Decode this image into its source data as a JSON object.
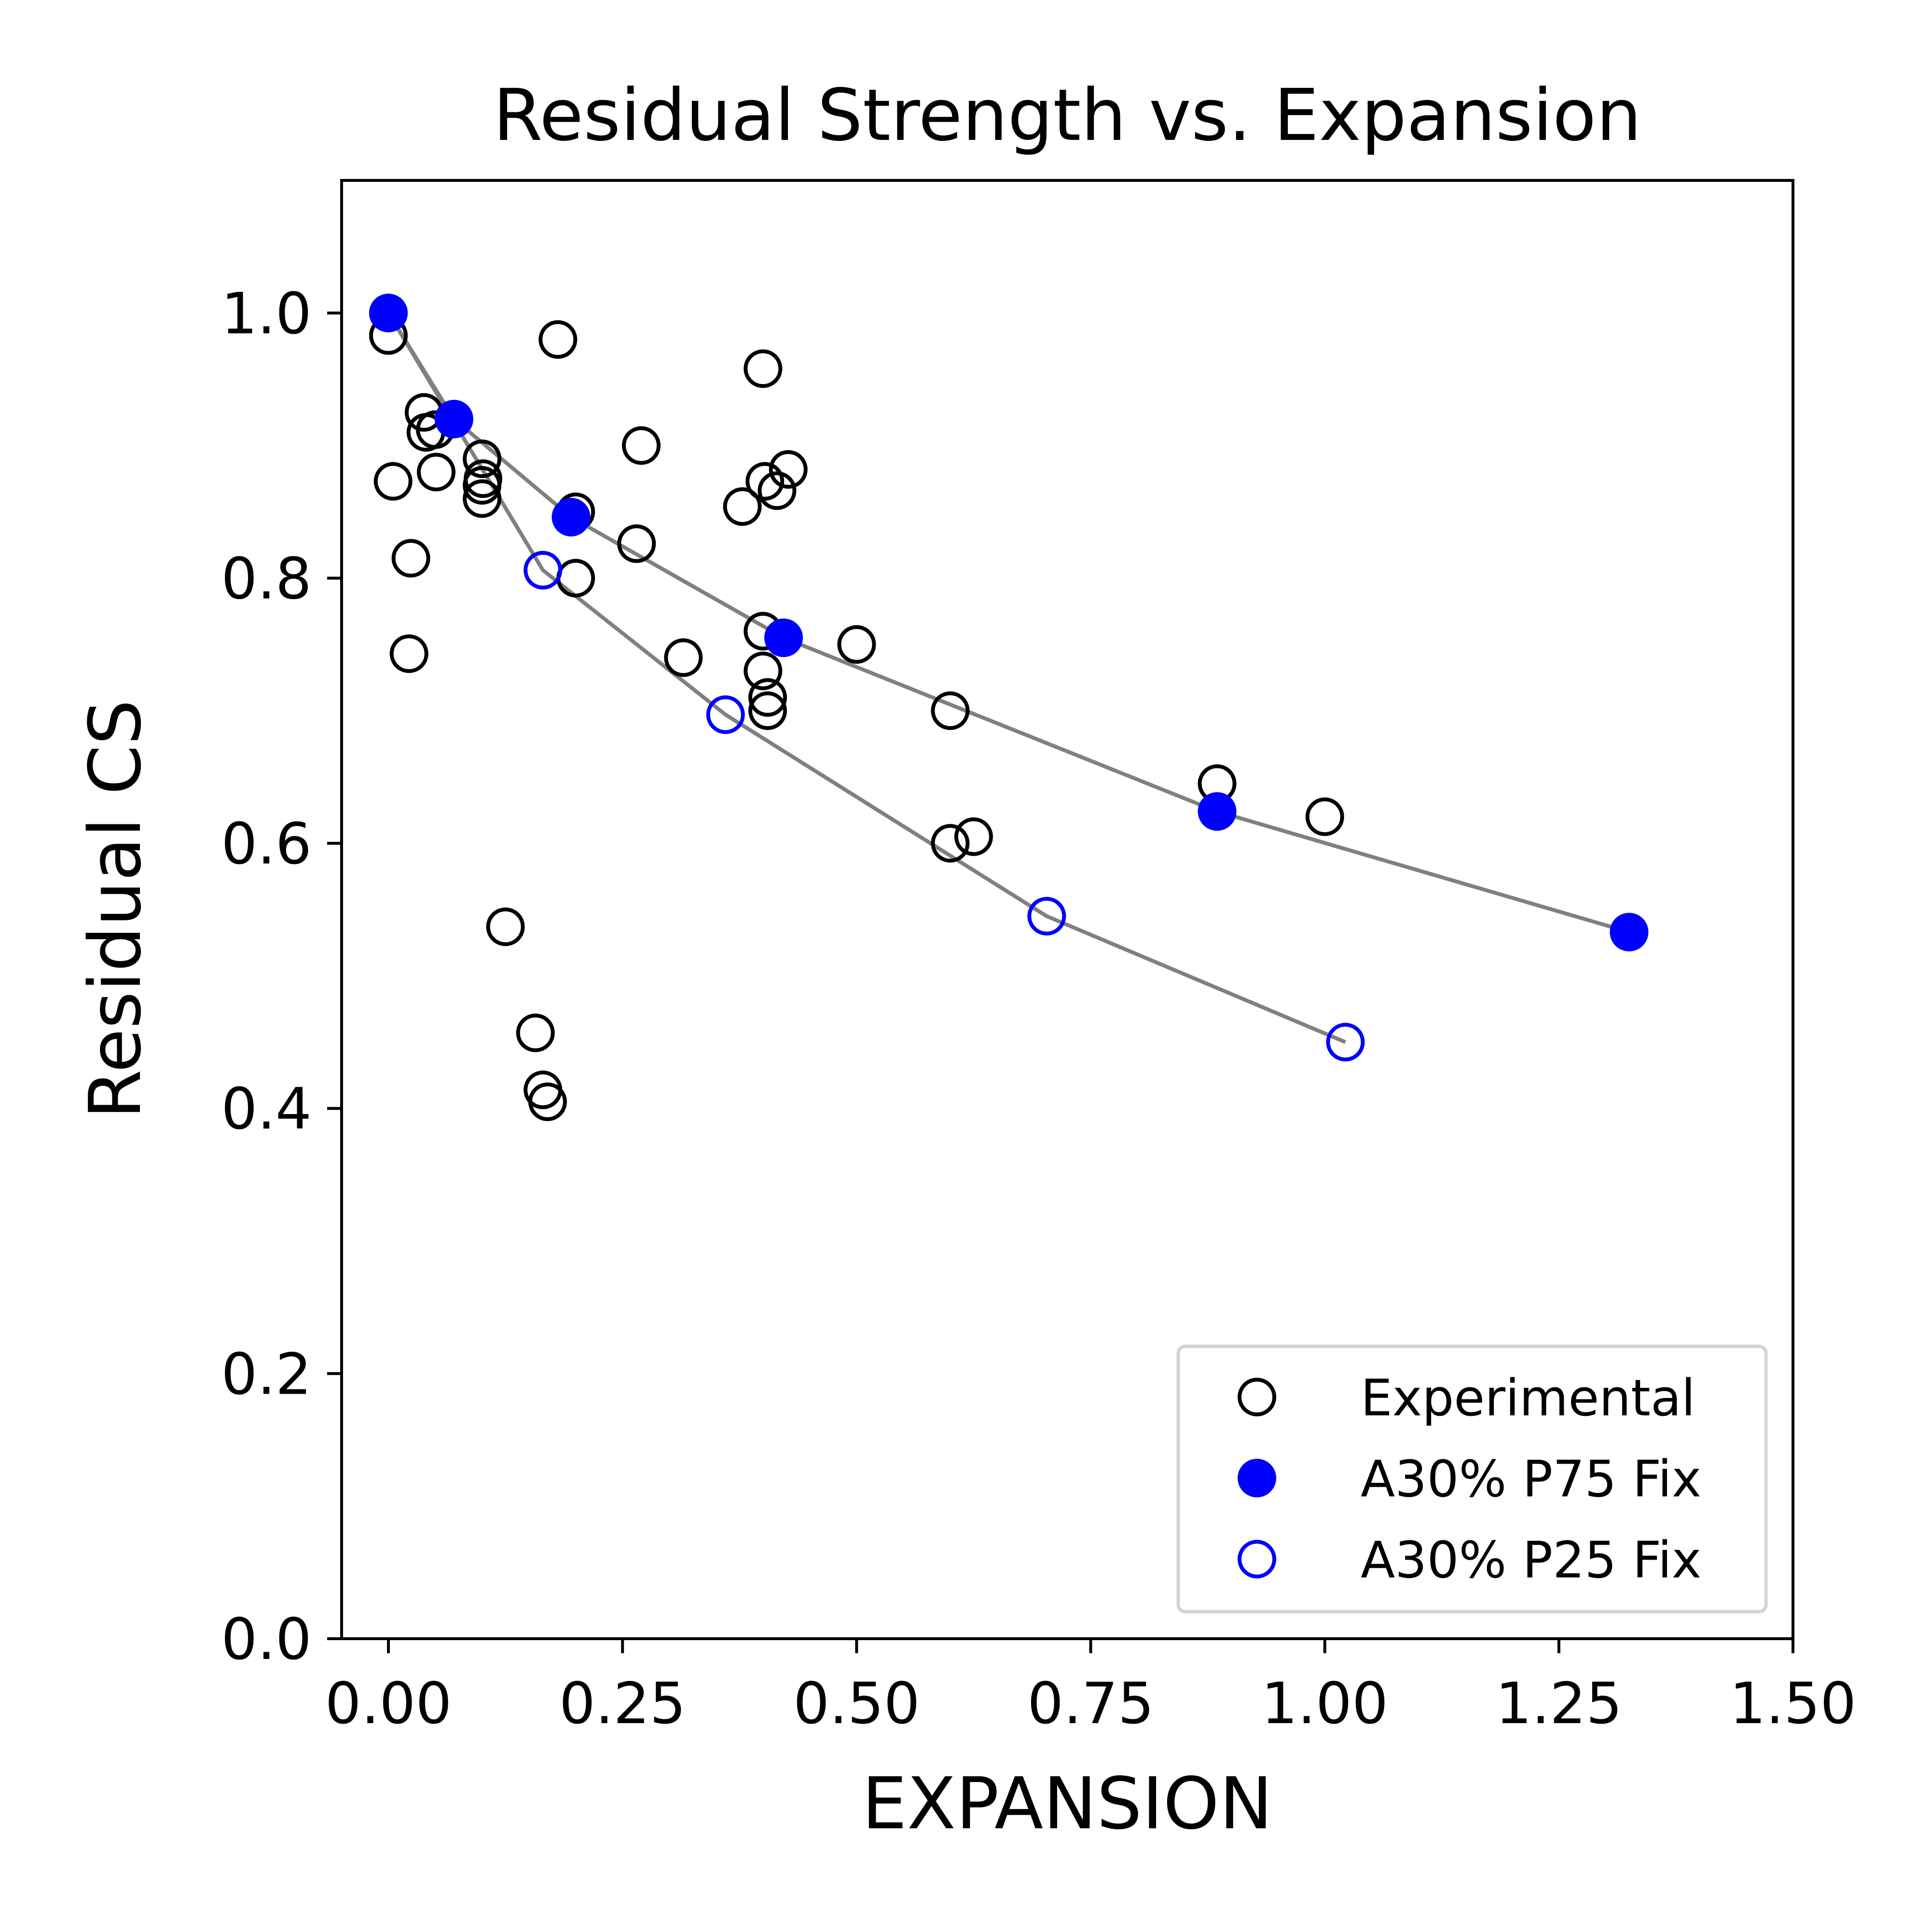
{
  "chart_data": {
    "type": "scatter",
    "title": "Residual Strength vs. Expansion",
    "xlabel": "EXPANSION",
    "ylabel": "Residual CS",
    "xlim": [
      -0.05,
      1.5
    ],
    "ylim": [
      0.0,
      1.1
    ],
    "x_ticks": [
      0.0,
      0.25,
      0.5,
      0.75,
      1.0,
      1.25,
      1.5
    ],
    "x_tick_labels": [
      "0.00",
      "0.25",
      "0.50",
      "0.75",
      "1.00",
      "1.25",
      "1.50"
    ],
    "y_ticks": [
      0.0,
      0.2,
      0.4,
      0.6,
      0.8,
      1.0
    ],
    "y_tick_labels": [
      "0.0",
      "0.2",
      "0.4",
      "0.6",
      "0.8",
      "1.0"
    ],
    "grid": false,
    "legend_position": "bottom-right",
    "series": [
      {
        "name": "Experimental",
        "marker": "open-circle",
        "color": "#000000",
        "line": false,
        "points": [
          [
            0.0,
            0.983
          ],
          [
            0.005,
            0.873
          ],
          [
            0.022,
            0.743
          ],
          [
            0.024,
            0.815
          ],
          [
            0.038,
            0.925
          ],
          [
            0.04,
            0.91
          ],
          [
            0.05,
            0.912
          ],
          [
            0.051,
            0.88
          ],
          [
            0.1,
            0.89
          ],
          [
            0.101,
            0.875
          ],
          [
            0.1,
            0.86
          ],
          [
            0.1,
            0.87
          ],
          [
            0.125,
            0.537
          ],
          [
            0.157,
            0.457
          ],
          [
            0.165,
            0.414
          ],
          [
            0.17,
            0.405
          ],
          [
            0.181,
            0.98
          ],
          [
            0.2,
            0.85
          ],
          [
            0.2,
            0.8
          ],
          [
            0.265,
            0.826
          ],
          [
            0.27,
            0.9
          ],
          [
            0.315,
            0.74
          ],
          [
            0.378,
            0.854
          ],
          [
            0.4,
            0.958
          ],
          [
            0.402,
            0.873
          ],
          [
            0.415,
            0.866
          ],
          [
            0.427,
            0.882
          ],
          [
            0.4,
            0.76
          ],
          [
            0.4,
            0.73
          ],
          [
            0.405,
            0.71
          ],
          [
            0.405,
            0.7
          ],
          [
            0.5,
            0.75
          ],
          [
            0.6,
            0.7
          ],
          [
            0.6,
            0.6
          ],
          [
            0.625,
            0.605
          ],
          [
            0.885,
            0.645
          ],
          [
            1.0,
            0.62
          ]
        ]
      },
      {
        "name": "A30% P75 Fix",
        "marker": "filled-circle",
        "color": "#0000ff",
        "line": true,
        "line_color": "#808080",
        "points": [
          [
            0.0,
            1.0
          ],
          [
            0.07,
            0.92
          ],
          [
            0.195,
            0.846
          ],
          [
            0.422,
            0.755
          ],
          [
            0.885,
            0.624
          ],
          [
            1.325,
            0.533
          ]
        ]
      },
      {
        "name": "A30% P25 Fix",
        "marker": "open-circle",
        "color": "#0000ff",
        "line": true,
        "line_color": "#808080",
        "points": [
          [
            0.0,
            1.0
          ],
          [
            0.165,
            0.806
          ],
          [
            0.36,
            0.697
          ],
          [
            0.703,
            0.545
          ],
          [
            1.022,
            0.45
          ]
        ]
      }
    ]
  }
}
